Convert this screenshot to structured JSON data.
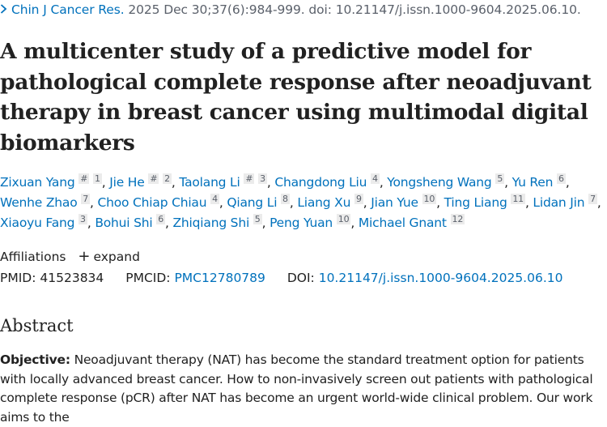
{
  "citation": {
    "journal": "Chin J Cancer Res.",
    "details": "2025 Dec 30;37(6):984-999. doi: 10.21147/j.issn.1000-9604.2025.06.10."
  },
  "title": "A multicenter study of a predictive model for pathological complete response after neoadjuvant therapy in breast cancer using multimodal digital biomarkers",
  "authors": [
    {
      "name": "Zixuan Yang",
      "marks": [
        "#",
        "1"
      ]
    },
    {
      "name": "Jie He",
      "marks": [
        "#",
        "2"
      ]
    },
    {
      "name": "Taolang Li",
      "marks": [
        "#",
        "3"
      ]
    },
    {
      "name": "Changdong Liu",
      "marks": [
        "4"
      ]
    },
    {
      "name": "Yongsheng Wang",
      "marks": [
        "5"
      ]
    },
    {
      "name": "Yu Ren",
      "marks": [
        "6"
      ]
    },
    {
      "name": "Wenhe Zhao",
      "marks": [
        "7"
      ]
    },
    {
      "name": "Choo Chiap Chiau",
      "marks": [
        "4"
      ]
    },
    {
      "name": "Qiang Li",
      "marks": [
        "8"
      ]
    },
    {
      "name": "Liang Xu",
      "marks": [
        "9"
      ]
    },
    {
      "name": "Jian Yue",
      "marks": [
        "10"
      ]
    },
    {
      "name": "Ting Liang",
      "marks": [
        "11"
      ]
    },
    {
      "name": "Lidan Jin",
      "marks": [
        "7"
      ]
    },
    {
      "name": "Xiaoyu Fang",
      "marks": [
        "3"
      ]
    },
    {
      "name": "Bohui Shi",
      "marks": [
        "6"
      ]
    },
    {
      "name": "Zhiqiang Shi",
      "marks": [
        "5"
      ]
    },
    {
      "name": "Peng Yuan",
      "marks": [
        "10"
      ]
    },
    {
      "name": "Michael Gnant",
      "marks": [
        "12"
      ]
    }
  ],
  "affiliations": {
    "label": "Affiliations",
    "expand_label": "expand",
    "expand_icon": "plus-icon"
  },
  "ids": {
    "pmid_label": "PMID:",
    "pmid": "41523834",
    "pmcid_label": "PMCID:",
    "pmcid": "PMC12780789",
    "doi_label": "DOI:",
    "doi": "10.21147/j.issn.1000-9604.2025.06.10"
  },
  "abstract": {
    "heading": "Abstract",
    "objective_label": "Objective:",
    "objective_text": "Neoadjuvant therapy (NAT) has become the standard treatment option for patients with locally advanced breast cancer. How to non-invasively screen out patients with pathological complete response (pCR) after NAT has become an urgent world-wide clinical problem. Our work aims to the"
  },
  "colors": {
    "link": "#0071bc",
    "text": "#212121",
    "muted": "#5b616b"
  }
}
